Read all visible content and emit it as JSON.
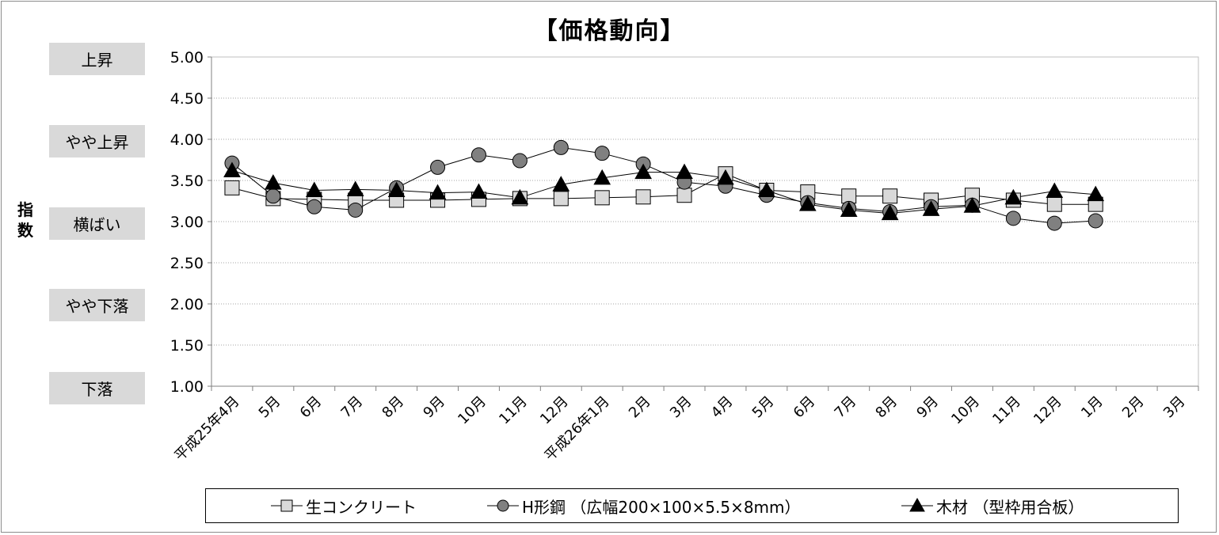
{
  "chart_data": {
    "type": "line",
    "title": "【価格動向】",
    "ylabel": "指数",
    "ylim": [
      1.0,
      5.0
    ],
    "yticks": [
      "5.00",
      "4.50",
      "4.00",
      "3.50",
      "3.00",
      "2.50",
      "2.00",
      "1.50",
      "1.00"
    ],
    "grid": true,
    "legend_position": "bottom",
    "level_labels": [
      {
        "label": "上昇",
        "value": 5.0
      },
      {
        "label": "やや上昇",
        "value": 4.0
      },
      {
        "label": "横ばい",
        "value": 3.0
      },
      {
        "label": "やや下落",
        "value": 2.0
      },
      {
        "label": "下落",
        "value": 1.0
      }
    ],
    "categories": [
      "平成25年4月",
      "5月",
      "6月",
      "7月",
      "8月",
      "9月",
      "10月",
      "11月",
      "12月",
      "平成26年1月",
      "2月",
      "3月",
      "4月",
      "5月",
      "6月",
      "7月",
      "8月",
      "9月",
      "10月",
      "11月",
      "12月",
      "1月",
      "2月",
      "3月"
    ],
    "series": [
      {
        "name": "生コンクリート",
        "marker": "square",
        "color": "#d9d9d9",
        "values": [
          3.41,
          3.28,
          3.27,
          3.26,
          3.26,
          3.26,
          3.27,
          3.28,
          3.28,
          3.29,
          3.3,
          3.32,
          3.58,
          3.38,
          3.36,
          3.31,
          3.31,
          3.26,
          3.32,
          3.26,
          3.21,
          3.21,
          null,
          null
        ]
      },
      {
        "name": "H形鋼 （広幅200×100×5.5×8mm）",
        "marker": "circle",
        "color": "#808080",
        "values": [
          3.71,
          3.31,
          3.18,
          3.14,
          3.41,
          3.66,
          3.81,
          3.74,
          3.9,
          3.83,
          3.7,
          3.48,
          3.43,
          3.32,
          3.23,
          3.16,
          3.12,
          3.18,
          3.2,
          3.04,
          2.98,
          3.01,
          null,
          null
        ]
      },
      {
        "name": "木材 （型枠用合板）",
        "marker": "triangle",
        "color": "#000000",
        "values": [
          3.62,
          3.47,
          3.38,
          3.39,
          3.38,
          3.35,
          3.36,
          3.29,
          3.45,
          3.53,
          3.6,
          3.6,
          3.53,
          3.38,
          3.21,
          3.14,
          3.1,
          3.15,
          3.19,
          3.29,
          3.37,
          3.33,
          null,
          null
        ]
      }
    ]
  }
}
